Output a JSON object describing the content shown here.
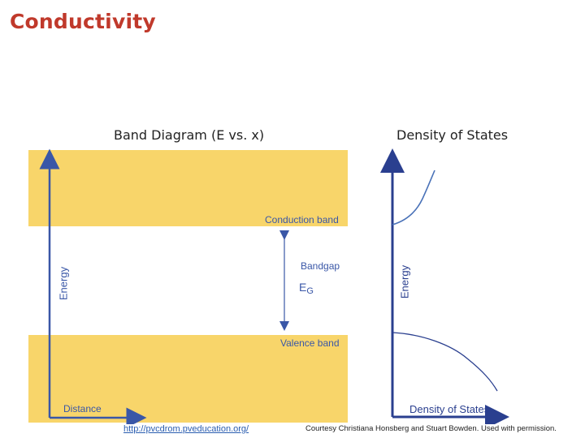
{
  "slide": {
    "title": "Conductivity"
  },
  "band_diagram": {
    "title": "Band Diagram (E vs. x)",
    "conduction_band": "Conduction band",
    "valence_band": "Valence band",
    "bandgap": "Bandgap",
    "eg_letter": "E",
    "eg_subscript": "G",
    "y_axis": "Energy",
    "x_axis": "Distance",
    "band_color": "#f8d56a",
    "label_color": "#3a57a7"
  },
  "dos_diagram": {
    "title": "Density of States",
    "y_axis": "Energy",
    "x_axis": "Density of States",
    "line_color": "#2a3f8f"
  },
  "footer": {
    "url": "http://pvcdrom.pveducation.org/",
    "credit": "Courtesy Christiana Honsberg and Stuart Bowden. Used with permission."
  }
}
